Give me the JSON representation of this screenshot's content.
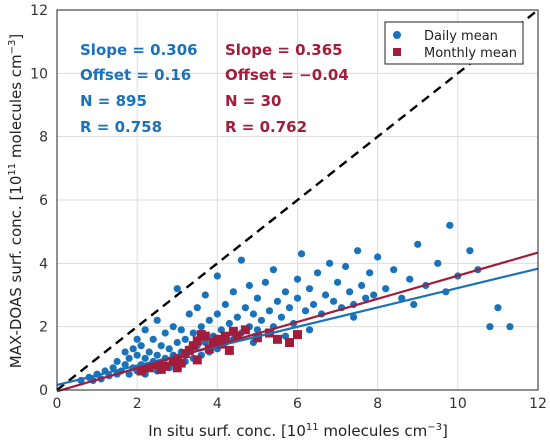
{
  "chart_data": {
    "type": "scatter",
    "xlabel_prefix": "In situ surf. conc. [10",
    "xlabel_exp": "11",
    "xlabel_mid": " molecules cm",
    "xlabel_unitexp": "−3",
    "xlabel_end": "]",
    "ylabel_prefix": "MAX-DOAS surf. conc. [10",
    "ylabel_exp": "11",
    "ylabel_mid": " molecules cm",
    "ylabel_unitexp": "−3",
    "ylabel_end": "]",
    "xlim": [
      0,
      12
    ],
    "ylim": [
      0,
      12
    ],
    "xticks": [
      "0",
      "2",
      "4",
      "6",
      "8",
      "10",
      "12"
    ],
    "yticks": [
      "0",
      "2",
      "4",
      "6",
      "8",
      "10",
      "12"
    ],
    "grid": true,
    "legend_position": "top-right",
    "series": [
      {
        "name": "Daily mean",
        "marker": "circle",
        "color": "#1a72bb",
        "fit": {
          "slope": 0.306,
          "offset": 0.16
        },
        "stats": {
          "slope": "Slope = 0.306",
          "offset": "Offset = 0.16",
          "n": "N = 895",
          "r": "R = 0.758"
        },
        "points": [
          [
            0.6,
            0.3
          ],
          [
            0.8,
            0.4
          ],
          [
            0.9,
            0.3
          ],
          [
            1.0,
            0.5
          ],
          [
            1.1,
            0.35
          ],
          [
            1.2,
            0.6
          ],
          [
            1.3,
            0.45
          ],
          [
            1.4,
            0.7
          ],
          [
            1.5,
            0.5
          ],
          [
            1.5,
            0.9
          ],
          [
            1.6,
            0.6
          ],
          [
            1.7,
            0.8
          ],
          [
            1.7,
            1.2
          ],
          [
            1.8,
            0.5
          ],
          [
            1.8,
            1.0
          ],
          [
            1.9,
            0.7
          ],
          [
            1.9,
            1.3
          ],
          [
            2.0,
            0.6
          ],
          [
            2.0,
            1.1
          ],
          [
            2.0,
            1.6
          ],
          [
            2.1,
            0.8
          ],
          [
            2.1,
            1.4
          ],
          [
            2.2,
            0.5
          ],
          [
            2.2,
            1.0
          ],
          [
            2.2,
            1.9
          ],
          [
            2.3,
            0.7
          ],
          [
            2.3,
            1.2
          ],
          [
            2.4,
            0.9
          ],
          [
            2.4,
            1.6
          ],
          [
            2.5,
            0.6
          ],
          [
            2.5,
            1.1
          ],
          [
            2.5,
            2.2
          ],
          [
            2.6,
            0.8
          ],
          [
            2.6,
            1.4
          ],
          [
            2.7,
            1.0
          ],
          [
            2.7,
            1.8
          ],
          [
            2.8,
            0.7
          ],
          [
            2.8,
            1.3
          ],
          [
            2.9,
            1.1
          ],
          [
            2.9,
            2.0
          ],
          [
            3.0,
            0.8
          ],
          [
            3.0,
            1.5
          ],
          [
            3.0,
            3.2
          ],
          [
            3.1,
            1.2
          ],
          [
            3.1,
            1.9
          ],
          [
            3.2,
            0.9
          ],
          [
            3.2,
            1.6
          ],
          [
            3.3,
            1.3
          ],
          [
            3.3,
            2.4
          ],
          [
            3.4,
            1.0
          ],
          [
            3.4,
            1.8
          ],
          [
            3.5,
            1.4
          ],
          [
            3.5,
            2.6
          ],
          [
            3.6,
            1.1
          ],
          [
            3.6,
            2.0
          ],
          [
            3.7,
            1.5
          ],
          [
            3.7,
            3.0
          ],
          [
            3.8,
            1.2
          ],
          [
            3.8,
            2.2
          ],
          [
            3.9,
            1.7
          ],
          [
            4.0,
            1.3
          ],
          [
            4.0,
            2.4
          ],
          [
            4.0,
            3.6
          ],
          [
            4.1,
            1.9
          ],
          [
            4.2,
            1.5
          ],
          [
            4.2,
            2.7
          ],
          [
            4.3,
            2.1
          ],
          [
            4.4,
            1.6
          ],
          [
            4.4,
            3.1
          ],
          [
            4.5,
            2.3
          ],
          [
            4.6,
            1.8
          ],
          [
            4.6,
            4.1
          ],
          [
            4.7,
            2.6
          ],
          [
            4.8,
            2.0
          ],
          [
            4.8,
            3.3
          ],
          [
            4.9,
            2.4
          ],
          [
            5.0,
            1.9
          ],
          [
            5.0,
            2.9
          ],
          [
            5.1,
            2.2
          ],
          [
            5.2,
            3.4
          ],
          [
            5.3,
            2.5
          ],
          [
            5.4,
            2.0
          ],
          [
            5.4,
            3.8
          ],
          [
            5.5,
            2.8
          ],
          [
            5.6,
            2.3
          ],
          [
            5.7,
            3.1
          ],
          [
            5.8,
            2.6
          ],
          [
            5.9,
            2.1
          ],
          [
            6.0,
            3.5
          ],
          [
            6.0,
            2.9
          ],
          [
            6.1,
            4.3
          ],
          [
            6.2,
            2.5
          ],
          [
            6.3,
            3.2
          ],
          [
            6.4,
            2.7
          ],
          [
            6.5,
            3.7
          ],
          [
            6.6,
            2.4
          ],
          [
            6.7,
            3.0
          ],
          [
            6.8,
            4.0
          ],
          [
            6.9,
            2.8
          ],
          [
            7.0,
            3.4
          ],
          [
            7.1,
            2.6
          ],
          [
            7.2,
            3.9
          ],
          [
            7.3,
            3.1
          ],
          [
            7.4,
            2.7
          ],
          [
            7.5,
            4.4
          ],
          [
            7.6,
            3.3
          ],
          [
            7.7,
            2.9
          ],
          [
            7.8,
            3.7
          ],
          [
            7.9,
            3.0
          ],
          [
            8.0,
            4.2
          ],
          [
            8.2,
            3.2
          ],
          [
            8.4,
            3.8
          ],
          [
            8.6,
            2.9
          ],
          [
            8.8,
            3.5
          ],
          [
            9.0,
            4.6
          ],
          [
            9.2,
            3.3
          ],
          [
            9.5,
            4.0
          ],
          [
            9.8,
            5.2
          ],
          [
            10.0,
            3.6
          ],
          [
            10.3,
            4.4
          ],
          [
            10.5,
            3.8
          ],
          [
            10.8,
            2.0
          ],
          [
            11.0,
            2.6
          ],
          [
            11.3,
            2.0
          ],
          [
            9.7,
            3.1
          ],
          [
            8.9,
            2.7
          ],
          [
            7.4,
            2.3
          ],
          [
            6.3,
            1.9
          ],
          [
            5.7,
            1.7
          ],
          [
            4.9,
            1.5
          ]
        ]
      },
      {
        "name": "Monthly mean",
        "marker": "square",
        "color": "#a11d3b",
        "fit": {
          "slope": 0.365,
          "offset": -0.04
        },
        "stats": {
          "slope": "Slope = 0.365",
          "offset": "Offset = −0.04",
          "n": "N = 30",
          "r": "R = 0.762"
        },
        "points": [
          [
            2.1,
            0.6
          ],
          [
            2.3,
            0.7
          ],
          [
            2.5,
            0.8
          ],
          [
            2.7,
            0.75
          ],
          [
            2.9,
            0.9
          ],
          [
            3.0,
            1.0
          ],
          [
            3.1,
            0.85
          ],
          [
            3.2,
            1.15
          ],
          [
            3.3,
            1.25
          ],
          [
            3.4,
            1.4
          ],
          [
            3.5,
            1.55
          ],
          [
            3.6,
            1.75
          ],
          [
            3.7,
            1.7
          ],
          [
            3.8,
            1.3
          ],
          [
            3.9,
            1.5
          ],
          [
            4.0,
            1.6
          ],
          [
            4.1,
            1.45
          ],
          [
            4.2,
            1.7
          ],
          [
            4.4,
            1.85
          ],
          [
            4.5,
            1.7
          ],
          [
            4.7,
            1.9
          ],
          [
            5.0,
            1.65
          ],
          [
            5.3,
            1.8
          ],
          [
            5.5,
            1.6
          ],
          [
            5.8,
            1.5
          ],
          [
            6.0,
            1.75
          ],
          [
            3.0,
            0.7
          ],
          [
            2.6,
            0.65
          ],
          [
            3.5,
            0.95
          ],
          [
            4.3,
            1.25
          ]
        ]
      }
    ],
    "reference_line": {
      "style": "dashed",
      "color": "#000000",
      "slope": 1,
      "offset": 0
    }
  }
}
